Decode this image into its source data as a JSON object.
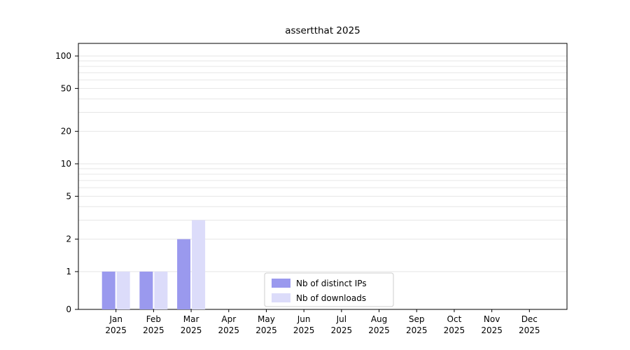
{
  "chart_data": {
    "type": "bar",
    "title": "assertthat 2025",
    "categories": [
      "Jan",
      "Feb",
      "Mar",
      "Apr",
      "May",
      "Jun",
      "Jul",
      "Aug",
      "Sep",
      "Oct",
      "Nov",
      "Dec"
    ],
    "year_label": "2025",
    "series": [
      {
        "name": "Nb of distinct IPs",
        "color": "#9a99ee",
        "values": [
          1,
          1,
          2,
          0,
          0,
          0,
          0,
          0,
          0,
          0,
          0,
          0
        ]
      },
      {
        "name": "Nb of downloads",
        "color": "#dcdcfa",
        "values": [
          1,
          1,
          3,
          0,
          0,
          0,
          0,
          0,
          0,
          0,
          0,
          0
        ]
      }
    ],
    "yscale": "symlog",
    "y_ticks": [
      0,
      1,
      2,
      5,
      10,
      20,
      50,
      100
    ],
    "minor_gridlines": [
      1,
      2,
      3,
      4,
      5,
      6,
      7,
      8,
      9,
      10,
      20,
      30,
      40,
      50,
      60,
      70,
      80,
      90,
      100
    ],
    "ylim": [
      0,
      130
    ],
    "xlabel": "",
    "ylabel": "",
    "legend_position": "lower center",
    "grid": "horizontal",
    "colors": {
      "axis": "#000000",
      "gridline": "#e6e6e6",
      "legend_border": "#cccccc",
      "text": "#000000",
      "background": "#ffffff"
    }
  }
}
